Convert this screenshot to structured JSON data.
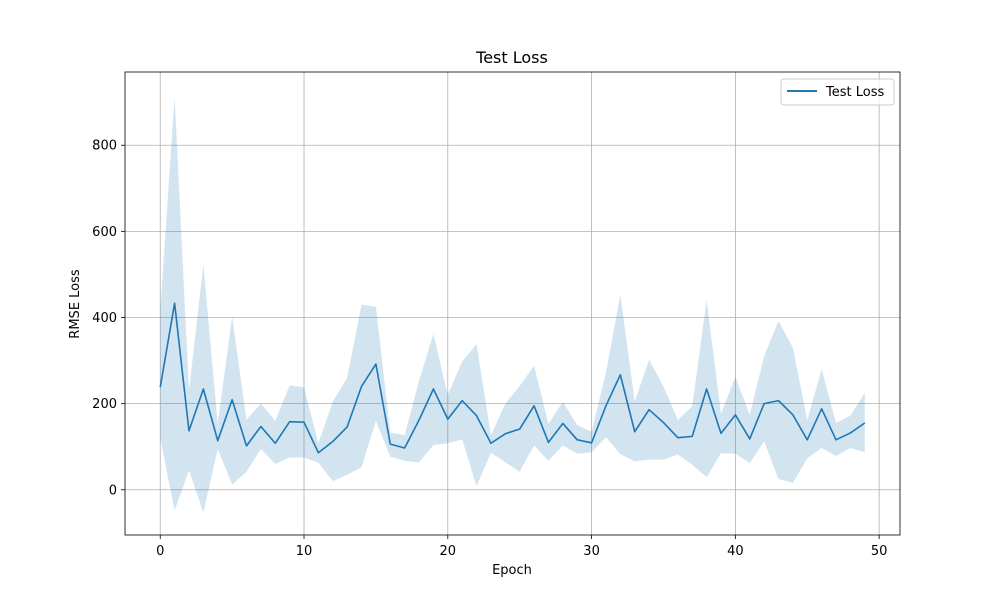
{
  "chart_data": {
    "type": "line",
    "title": "Test Loss",
    "xlabel": "Epoch",
    "ylabel": "RMSE Loss",
    "xlim": [
      -2.45,
      51.45
    ],
    "ylim": [
      -105,
      970
    ],
    "xticks": [
      0,
      10,
      20,
      30,
      40,
      50
    ],
    "yticks": [
      0,
      200,
      400,
      600,
      800
    ],
    "grid": true,
    "legend_position": "top-right",
    "colors": {
      "line": "#1f77b4",
      "band": "#1f77b4"
    },
    "series": [
      {
        "name": "Test Loss",
        "x": [
          0,
          1,
          2,
          3,
          4,
          5,
          6,
          7,
          8,
          9,
          10,
          11,
          12,
          13,
          14,
          15,
          16,
          17,
          18,
          19,
          20,
          21,
          22,
          23,
          24,
          25,
          26,
          27,
          28,
          29,
          30,
          31,
          32,
          33,
          34,
          35,
          36,
          37,
          38,
          39,
          40,
          41,
          42,
          43,
          44,
          45,
          46,
          47,
          48,
          49
        ],
        "y": [
          238,
          433,
          137,
          234,
          114,
          209,
          102,
          147,
          108,
          158,
          157,
          86,
          112,
          146,
          240,
          292,
          106,
          97,
          162,
          234,
          164,
          207,
          172,
          108,
          130,
          141,
          195,
          110,
          154,
          116,
          109,
          195,
          267,
          135,
          186,
          156,
          121,
          124,
          234,
          131,
          174,
          118,
          200,
          207,
          174,
          116,
          188,
          116,
          132,
          155
        ],
        "lower": [
          120,
          -48,
          45,
          -53,
          95,
          12,
          42,
          95,
          60,
          75,
          75,
          63,
          20,
          35,
          52,
          160,
          77,
          67,
          64,
          104,
          108,
          117,
          8,
          86,
          64,
          42,
          103,
          67,
          103,
          84,
          87,
          122,
          83,
          66,
          70,
          70,
          82,
          58,
          29,
          85,
          84,
          62,
          112,
          25,
          16,
          73,
          97,
          78,
          97,
          87
        ],
        "upper": [
          415,
          913,
          230,
          522,
          153,
          402,
          163,
          200,
          160,
          242,
          238,
          108,
          205,
          260,
          430,
          425,
          133,
          127,
          253,
          362,
          220,
          298,
          338,
          127,
          200,
          241,
          288,
          153,
          204,
          150,
          135,
          272,
          453,
          205,
          302,
          240,
          162,
          194,
          440,
          177,
          262,
          174,
          310,
          392,
          330,
          161,
          280,
          155,
          172,
          225
        ]
      }
    ]
  }
}
